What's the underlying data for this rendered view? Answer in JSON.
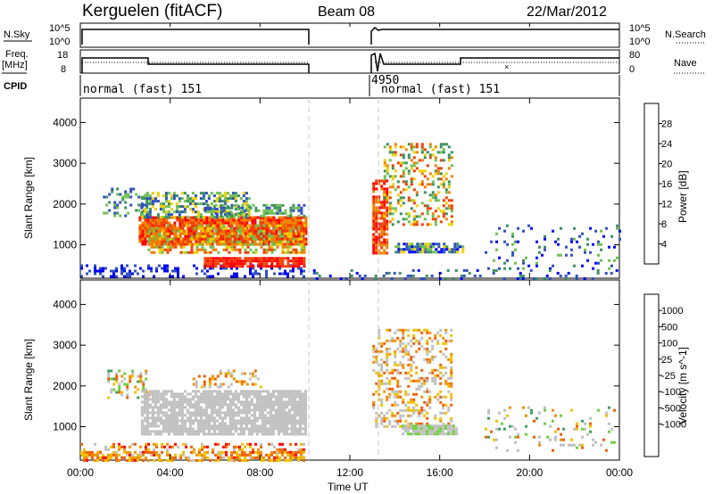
{
  "header": {
    "station": "Kerguelen (fitACF)",
    "beam": "Beam 08",
    "date": "22/Mar/2012"
  },
  "summary_panels": {
    "nsky_label": "N.Sky",
    "nsky_ticks": [
      "10^5",
      "10^0"
    ],
    "nsearch_label": "N.Search",
    "nsearch_ticks": [
      "10^5",
      "10^0"
    ],
    "freq_label_1": "Freq.",
    "freq_label_2": "[MHz]",
    "freq_ticks": [
      "18",
      "8"
    ],
    "nave_label": "Nave",
    "nave_ticks": [
      "80",
      "0"
    ],
    "cpid_label": "CPID",
    "cpid_segments": [
      {
        "text": "normal (fast) 151",
        "x_hours": 0.0
      },
      {
        "text": "4950",
        "x_hours": 13.0
      },
      {
        "text": "normal (fast) 151",
        "x_hours": 13.3
      }
    ]
  },
  "chart_data": [
    {
      "type": "heatmap",
      "name": "power",
      "ylabel": "Slant Range [km]",
      "ylim": [
        180,
        4600
      ],
      "yticks": [
        "1000",
        "2000",
        "3000",
        "4000"
      ],
      "xlim": [
        0,
        24
      ],
      "colorbar_label": "Power [dB]",
      "colorbar_ticks": [
        "4",
        "8",
        "12",
        "16",
        "20",
        "24",
        "28"
      ],
      "colors": [
        "#0000ff",
        "#3050c0",
        "#3a9060",
        "#70c050",
        "#f0d000",
        "#f08000",
        "#f04000",
        "#ff0000"
      ],
      "data_gap_hours": [
        10.0,
        13.0
      ]
    },
    {
      "type": "heatmap",
      "name": "velocity",
      "ylabel": "Slant Range [km]",
      "ylim": [
        180,
        4600
      ],
      "yticks": [
        "1000",
        "2000",
        "3000",
        "4000"
      ],
      "xlim": [
        0,
        24
      ],
      "colorbar_label": "Velocity [m s^-1]",
      "colorbar_ticks": [
        "1000",
        "500",
        "100",
        "25",
        "-25",
        "-100",
        "-500",
        "-1000"
      ],
      "colors": [
        "#1030c0",
        "#3060b0",
        "#40a060",
        "#70d040",
        "#c0c0c0",
        "#c0c0c0",
        "#f0c000",
        "#f09000",
        "#f06000",
        "#ff0000"
      ],
      "data_gap_hours": [
        10.0,
        13.0
      ]
    }
  ],
  "x_axis": {
    "label": "Time UT",
    "ticks": [
      "00:00",
      "04:00",
      "08:00",
      "12:00",
      "16:00",
      "20:00",
      "00:00"
    ]
  }
}
